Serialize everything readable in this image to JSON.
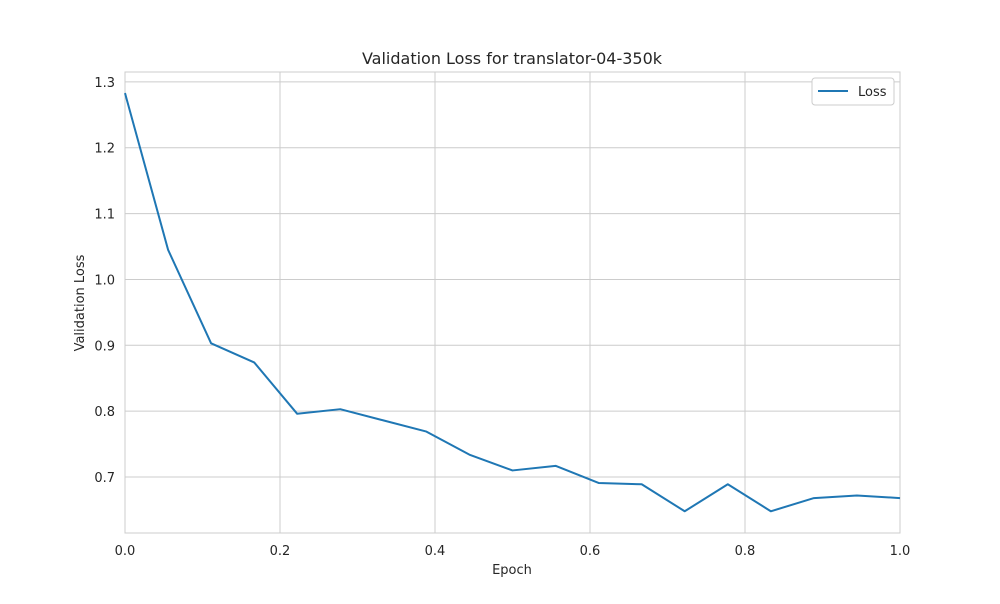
{
  "chart_data": {
    "type": "line",
    "title": "Validation Loss for translator-04-350k",
    "xlabel": "Epoch",
    "ylabel": "Validation Loss",
    "xlim": [
      0.0,
      1.0
    ],
    "ylim": [
      0.615,
      1.315
    ],
    "xticks": [
      0.0,
      0.2,
      0.4,
      0.6,
      0.8,
      1.0
    ],
    "xtick_labels": [
      "0.0",
      "0.2",
      "0.4",
      "0.6",
      "0.8",
      "1.0"
    ],
    "yticks": [
      0.7,
      0.8,
      0.9,
      1.0,
      1.1,
      1.2,
      1.3
    ],
    "ytick_labels": [
      "0.7",
      "0.8",
      "0.9",
      "1.0",
      "1.1",
      "1.2",
      "1.3"
    ],
    "grid": true,
    "legend_position": "top-right",
    "series": [
      {
        "name": "Loss",
        "color": "#1f77b4",
        "x": [
          0.0,
          0.0556,
          0.1111,
          0.1667,
          0.2222,
          0.2778,
          0.3333,
          0.3889,
          0.4444,
          0.5,
          0.5556,
          0.6111,
          0.6667,
          0.7222,
          0.7778,
          0.8333,
          0.8889,
          0.9444,
          1.0
        ],
        "y": [
          1.283,
          1.045,
          0.903,
          0.874,
          0.796,
          0.803,
          0.786,
          0.769,
          0.734,
          0.71,
          0.717,
          0.691,
          0.689,
          0.648,
          0.689,
          0.648,
          0.668,
          0.672,
          0.668
        ]
      }
    ]
  }
}
